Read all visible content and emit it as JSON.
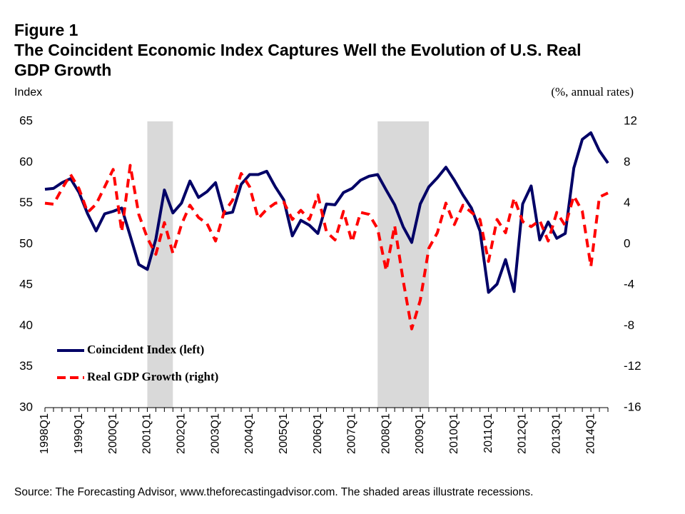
{
  "chart_data": {
    "type": "line",
    "figure_label": "Figure 1",
    "title": "The Coincident Economic Index Captures Well the Evolution of U.S. Real GDP Growth",
    "y_label": "Index",
    "y2_label": "(%, annual rates)",
    "source": "Source: The Forecasting Advisor, www.theforecastingadvisor.com. The shaded areas illustrate recessions.",
    "categories": [
      "1998Q1",
      null,
      null,
      null,
      "1999Q1",
      null,
      null,
      null,
      "2000Q1",
      null,
      null,
      null,
      "2001Q1",
      null,
      null,
      null,
      "2002Q1",
      null,
      null,
      null,
      "2003Q1",
      null,
      null,
      null,
      "2004Q1",
      null,
      null,
      null,
      "2005Q1",
      null,
      null,
      null,
      "2006Q1",
      null,
      null,
      null,
      "2007Q1",
      null,
      null,
      null,
      "2008Q1",
      null,
      null,
      null,
      "2009Q1",
      null,
      null,
      null,
      "2010Q1",
      null,
      null,
      null,
      "2011Q1",
      null,
      null,
      null,
      "2012Q1",
      null,
      null,
      null,
      "2013Q1",
      null,
      null,
      null,
      "2014Q1",
      null,
      null
    ],
    "series": [
      {
        "name": "Coincident Index (left)",
        "color": "#000066",
        "line_style": "solid",
        "axis": "y",
        "values": [
          56.7,
          56.8,
          57.5,
          58.0,
          56.3,
          53.7,
          51.6,
          53.7,
          54.0,
          54.4,
          51.0,
          47.5,
          46.9,
          50.6,
          56.6,
          53.8,
          55.0,
          57.7,
          55.7,
          56.4,
          57.5,
          53.7,
          53.9,
          57.3,
          58.5,
          58.5,
          58.9,
          57.0,
          55.4,
          51.0,
          52.9,
          52.3,
          51.3,
          54.9,
          54.8,
          56.3,
          56.8,
          57.8,
          58.3,
          58.5,
          56.6,
          54.8,
          52.1,
          50.2,
          54.9,
          57.0,
          58.1,
          59.4,
          57.8,
          56.0,
          54.4,
          51.6,
          44.1,
          45.1,
          48.1,
          44.2,
          54.9,
          57.1,
          50.5,
          52.7,
          50.7,
          51.3,
          59.3,
          62.8,
          63.6,
          61.4,
          59.9
        ]
      },
      {
        "name": "Real GDP Growth (right)",
        "color": "#ff0000",
        "line_style": "dashed",
        "axis": "y2",
        "values": [
          4.0,
          3.9,
          5.4,
          6.8,
          5.4,
          3.1,
          3.9,
          5.6,
          7.3,
          1.2,
          7.7,
          2.9,
          0.6,
          -1.0,
          2.1,
          -0.9,
          1.9,
          3.8,
          2.6,
          2.0,
          0.3,
          3.1,
          4.3,
          6.9,
          5.6,
          2.5,
          3.4,
          4.0,
          4.1,
          2.4,
          3.3,
          2.4,
          4.8,
          1.2,
          0.4,
          3.2,
          0.2,
          3.1,
          2.9,
          1.5,
          -2.6,
          1.8,
          -3.6,
          -8.3,
          -5.5,
          -0.4,
          1.1,
          4.0,
          1.9,
          3.8,
          3.1,
          2.4,
          -1.7,
          2.4,
          1.1,
          4.5,
          2.2,
          1.7,
          2.3,
          0.3,
          3.1,
          1.8,
          4.7,
          3.2,
          -2.2,
          4.6,
          5.0
        ]
      }
    ],
    "ylim": [
      30,
      65
    ],
    "yticks": [
      30,
      35,
      40,
      45,
      50,
      55,
      60,
      65
    ],
    "y2lim": [
      -16,
      12
    ],
    "y2ticks": [
      -16,
      -12,
      -8,
      -4,
      0,
      4,
      8,
      12
    ],
    "shaded_ranges": [
      [
        12,
        15
      ],
      [
        39,
        45
      ]
    ],
    "shade_color": "#d9d9d9",
    "grid": false,
    "legend": "lower left"
  }
}
